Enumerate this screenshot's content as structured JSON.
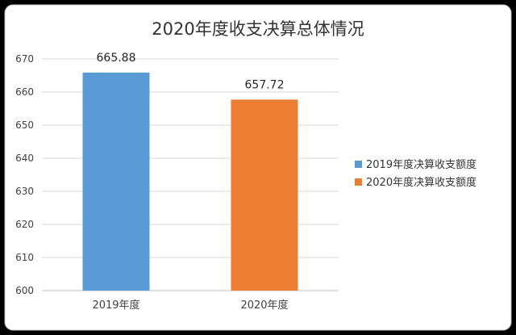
{
  "chart_data": {
    "type": "bar",
    "title": "2020年度收支决算总体情况",
    "categories": [
      "2019年度",
      "2020年度"
    ],
    "series": [
      {
        "name": "2019年度决算收支额度",
        "values": [
          665.88,
          null
        ],
        "color": "#5B9BD5"
      },
      {
        "name": "2020年度决算收支额度",
        "values": [
          null,
          657.72
        ],
        "color": "#ED7D31"
      }
    ],
    "data_labels": [
      "665.88",
      "657.72"
    ],
    "xlabel": "",
    "ylabel": "",
    "ylim": [
      600,
      670
    ],
    "yticks": [
      600,
      610,
      620,
      630,
      640,
      650,
      660,
      670
    ],
    "grid": true,
    "legend_position": "right",
    "background": "#FFFFFF",
    "grid_color": "#D9D9D9"
  }
}
